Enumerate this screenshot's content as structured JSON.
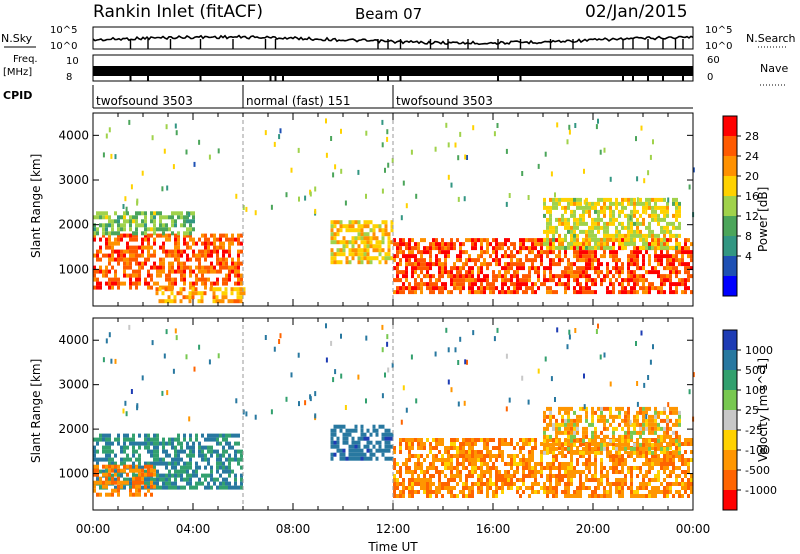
{
  "header": {
    "station": "Rankin Inlet (fitACF)",
    "beam": "Beam 07",
    "date": "02/Jan/2015"
  },
  "strips": {
    "nsky_label": "N.Sky",
    "nsky_ticks": [
      "10^5",
      "10^0"
    ],
    "nsearch_label": "N.Search",
    "nsearch_ticks": [
      "10^5",
      "10^0"
    ],
    "freq_label_1": "Freq.",
    "freq_label_2": "[MHz]",
    "freq_ticks": [
      "10",
      "8"
    ],
    "nave_label": "Nave",
    "nave_ticks": [
      "60",
      "0"
    ],
    "cpid_label": "CPID",
    "modes": [
      {
        "label": "twofsound 3503",
        "start_hour": 0,
        "end_hour": 6
      },
      {
        "label": "normal (fast) 151",
        "start_hour": 6,
        "end_hour": 12
      },
      {
        "label": "twofsound 3503",
        "start_hour": 12,
        "end_hour": 24
      }
    ]
  },
  "chart_data": [
    {
      "type": "heatmap",
      "name": "power",
      "xlabel": "Time UT",
      "ylabel": "Slant Range [km]",
      "xlim": [
        0,
        24
      ],
      "ylim": [
        180,
        4500
      ],
      "yticks": [
        "1000",
        "2000",
        "3000",
        "4000"
      ],
      "colorbar_label": "Power [dB]",
      "colorbar_ticks": [
        "28",
        "24",
        "20",
        "16",
        "12",
        "8",
        "4"
      ],
      "colorbar_colors": [
        "#ff0000",
        "#ff5a00",
        "#ff9100",
        "#ffd200",
        "#a0d24b",
        "#4ba55a",
        "#329682",
        "#1e50b4",
        "#0000ff"
      ],
      "regions": [
        {
          "t0": 0.0,
          "t1": 6.0,
          "r0": 600,
          "r1": 1800,
          "level": 26
        },
        {
          "t0": 0.0,
          "t1": 4.0,
          "r0": 1800,
          "r1": 2300,
          "level": 14
        },
        {
          "t0": 2.5,
          "t1": 6.0,
          "r0": 300,
          "r1": 600,
          "level": 22
        },
        {
          "t0": 9.5,
          "t1": 12.0,
          "r0": 1200,
          "r1": 2100,
          "level": 20
        },
        {
          "t0": 12.0,
          "t1": 24.0,
          "r0": 500,
          "r1": 1700,
          "level": 27
        },
        {
          "t0": 18.0,
          "t1": 23.5,
          "r0": 1500,
          "r1": 2600,
          "level": 18
        }
      ]
    },
    {
      "type": "heatmap",
      "name": "velocity",
      "xlabel": "Time UT",
      "ylabel": "Slant Range [km]",
      "xlim": [
        0,
        24
      ],
      "ylim": [
        180,
        4500
      ],
      "xticks": [
        "00:00",
        "04:00",
        "08:00",
        "12:00",
        "16:00",
        "20:00",
        "00:00"
      ],
      "yticks": [
        "1000",
        "2000",
        "3000",
        "4000"
      ],
      "colorbar_label": "Velocity [m s^-1]",
      "colorbar_ticks": [
        "1000",
        "500",
        "100",
        "25",
        "-25",
        "-100",
        "-500",
        "-1000"
      ],
      "colorbar_colors": [
        "#1e3cb4",
        "#2878a0",
        "#32a06e",
        "#78c850",
        "#c8c8c8",
        "#ffd200",
        "#ff9600",
        "#ff6400",
        "#ff0000"
      ],
      "regions": [
        {
          "t0": 0.0,
          "t1": 6.0,
          "r0": 700,
          "r1": 1900,
          "velocity": 300
        },
        {
          "t0": 0.0,
          "t1": 2.5,
          "r0": 500,
          "r1": 1200,
          "velocity": -300
        },
        {
          "t0": 9.5,
          "t1": 12.0,
          "r0": 1300,
          "r1": 2100,
          "velocity": 600
        },
        {
          "t0": 12.0,
          "t1": 24.0,
          "r0": 500,
          "r1": 1800,
          "velocity": -250
        },
        {
          "t0": 18.0,
          "t1": 23.5,
          "r0": 1500,
          "r1": 2500,
          "velocity": -150
        }
      ]
    }
  ]
}
